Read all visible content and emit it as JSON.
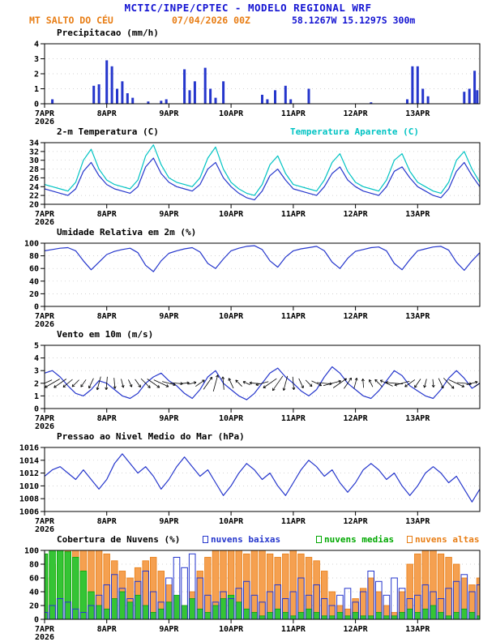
{
  "header": {
    "title": "MCTIC/INPE/CPTEC - MODELO REGIONAL WRF",
    "station": "MT SALTO DO CÉU",
    "run_datetime": "07/04/2026 00Z",
    "location": "58.1267W 15.1297S 300m"
  },
  "colors": {
    "title_blue": "#1414d2",
    "orange": "#e87d14",
    "cyan": "#00c3c3",
    "green": "#00a800",
    "line_blue": "#2536cc",
    "black": "#000000"
  },
  "time": {
    "hours_total": 168,
    "step": 3,
    "ticks": [
      0,
      24,
      48,
      72,
      96,
      120,
      144
    ],
    "tick_labels": [
      "7APR",
      "8APR",
      "9APR",
      "10APR",
      "11APR",
      "12APR",
      "13APR"
    ],
    "year_label": "2026"
  },
  "chart_data": [
    {
      "id": "precipitation",
      "type": "bar",
      "title": "Precipitacao (mm/h)",
      "ylim": [
        0,
        4
      ],
      "yticks": [
        0,
        1,
        2,
        3,
        4
      ],
      "bar_color": "#2536cc",
      "points": [
        [
          3,
          0.3
        ],
        [
          19,
          1.2
        ],
        [
          21,
          1.3
        ],
        [
          24,
          2.9
        ],
        [
          26,
          2.5
        ],
        [
          28,
          1.0
        ],
        [
          30,
          1.5
        ],
        [
          32,
          0.7
        ],
        [
          34,
          0.4
        ],
        [
          40,
          0.15
        ],
        [
          45,
          0.2
        ],
        [
          47,
          0.3
        ],
        [
          54,
          2.3
        ],
        [
          56,
          0.9
        ],
        [
          58,
          1.5
        ],
        [
          62,
          2.4
        ],
        [
          64,
          1.0
        ],
        [
          66,
          0.4
        ],
        [
          69,
          1.5
        ],
        [
          84,
          0.6
        ],
        [
          86,
          0.3
        ],
        [
          89,
          0.9
        ],
        [
          93,
          1.2
        ],
        [
          95,
          0.3
        ],
        [
          102,
          1.0
        ],
        [
          126,
          0.1
        ],
        [
          140,
          0.3
        ],
        [
          142,
          2.5
        ],
        [
          144,
          2.5
        ],
        [
          146,
          1.0
        ],
        [
          148,
          0.5
        ],
        [
          162,
          0.8
        ],
        [
          164,
          1.0
        ],
        [
          166,
          2.2
        ],
        [
          167,
          0.9
        ]
      ]
    },
    {
      "id": "temperature",
      "type": "line",
      "title": "2-m Temperatura (C)",
      "title2": "Temperatura Aparente (C)",
      "ylim": [
        20,
        34
      ],
      "yticks": [
        20,
        22,
        24,
        26,
        28,
        30,
        32,
        34
      ],
      "series": [
        {
          "name": "2-m Temperatura (C)",
          "color": "#2536cc",
          "values": [
            23.5,
            23,
            22.5,
            22,
            23.5,
            27.5,
            29.5,
            26.5,
            24.5,
            23.5,
            23,
            22.5,
            24,
            28.5,
            30.5,
            27,
            25,
            24,
            23.5,
            23,
            24.5,
            28,
            29.5,
            26,
            24,
            22.5,
            21.5,
            21,
            23,
            26.5,
            28,
            25.5,
            23.5,
            23,
            22.5,
            22,
            24,
            27,
            28.5,
            25.5,
            24,
            23,
            22.5,
            22,
            24,
            27.5,
            28.5,
            26,
            24,
            23,
            22,
            21.5,
            23.5,
            27.5,
            29.5,
            26.5,
            24
          ]
        },
        {
          "name": "Temperatura Aparente (C)",
          "color": "#00c3c3",
          "values": [
            24.5,
            24,
            23.5,
            23,
            25,
            30,
            32.5,
            28,
            25.5,
            24.5,
            24,
            23.5,
            25.5,
            31,
            33.5,
            29,
            26,
            25,
            24.5,
            24,
            26,
            30.5,
            33,
            28,
            25,
            23.5,
            22.5,
            22,
            24.5,
            29,
            31,
            27,
            24.5,
            24,
            23.5,
            23,
            25.5,
            29.5,
            31.5,
            27.5,
            25,
            24,
            23.5,
            23,
            25.5,
            30,
            31.5,
            27.5,
            25,
            24,
            23,
            22.5,
            25,
            30,
            32,
            28,
            25
          ]
        }
      ]
    },
    {
      "id": "humidity",
      "type": "line",
      "title": "Umidade Relativa em 2m (%)",
      "ylim": [
        0,
        100
      ],
      "yticks": [
        0,
        20,
        40,
        60,
        80,
        100
      ],
      "series": [
        {
          "name": "Umidade Relativa em 2m (%)",
          "color": "#2536cc",
          "values": [
            88,
            90,
            92,
            93,
            88,
            72,
            58,
            70,
            82,
            87,
            90,
            92,
            85,
            65,
            55,
            72,
            84,
            88,
            91,
            93,
            86,
            68,
            60,
            75,
            88,
            92,
            95,
            96,
            90,
            72,
            62,
            78,
            88,
            91,
            93,
            95,
            88,
            70,
            60,
            76,
            87,
            90,
            93,
            94,
            88,
            68,
            58,
            74,
            88,
            91,
            94,
            95,
            89,
            70,
            57,
            72,
            85
          ]
        }
      ]
    },
    {
      "id": "wind",
      "type": "wind",
      "title": "Vento em 10m (m/s)",
      "ylim": [
        0,
        5
      ],
      "yticks": [
        0,
        1,
        2,
        3,
        4,
        5
      ],
      "arrow_color": "#000000",
      "dirs": [
        205,
        210,
        215,
        220,
        225,
        235,
        245,
        255,
        265,
        275,
        285,
        295,
        305,
        315,
        325,
        335,
        345,
        355,
        5,
        15,
        35,
        55,
        75,
        95,
        115,
        135,
        155,
        175,
        195,
        215,
        235,
        255,
        275,
        295,
        315,
        335,
        355,
        15,
        35,
        55,
        75,
        95,
        115,
        135,
        155,
        175,
        195,
        215,
        235,
        255,
        275,
        295,
        315,
        335,
        355,
        15,
        35
      ],
      "series": [
        {
          "name": "Vento em 10m (m/s)",
          "color": "#2536cc",
          "values": [
            2.8,
            3,
            2.5,
            1.8,
            1.2,
            1,
            1.5,
            2.2,
            2,
            1.5,
            1,
            0.8,
            1.2,
            2,
            2.5,
            2.8,
            2.2,
            1.8,
            1.2,
            0.8,
            1.5,
            2.5,
            3,
            2,
            1.5,
            1,
            0.7,
            1.2,
            2,
            2.8,
            3.2,
            2.5,
            2,
            1.4,
            1,
            1.5,
            2.5,
            3.3,
            2.8,
            2,
            1.5,
            1,
            0.8,
            1.4,
            2.2,
            3,
            2.6,
            1.8,
            1.4,
            1,
            0.8,
            1.5,
            2.4,
            3,
            2.4,
            1.6,
            2
          ]
        }
      ]
    },
    {
      "id": "pressure",
      "type": "line",
      "title": "Pressao ao Nivel Medio do Mar (hPa)",
      "ylim": [
        1006,
        1016
      ],
      "yticks": [
        1006,
        1008,
        1010,
        1012,
        1014,
        1016
      ],
      "series": [
        {
          "name": "Pressao ao Nivel Medio do Mar (hPa)",
          "color": "#2536cc",
          "values": [
            1011.5,
            1012.5,
            1013,
            1012,
            1011,
            1012.5,
            1011,
            1009.5,
            1011,
            1013.5,
            1015,
            1013.5,
            1012,
            1013,
            1011.5,
            1009.5,
            1011,
            1013,
            1014.5,
            1013,
            1011.5,
            1012.5,
            1010.5,
            1008.5,
            1010,
            1012,
            1013.5,
            1012.5,
            1011,
            1012,
            1010,
            1008.5,
            1010.5,
            1012.5,
            1014,
            1013,
            1011.5,
            1012.5,
            1010.5,
            1009,
            1010.5,
            1012.5,
            1013.5,
            1012.5,
            1011,
            1012,
            1010,
            1008.5,
            1010,
            1012,
            1013,
            1012,
            1010.5,
            1011.5,
            1009.5,
            1007.5,
            1009.5
          ]
        }
      ]
    },
    {
      "id": "clouds",
      "type": "clouds",
      "title": "Cobertura de Nuvens (%)",
      "ylim": [
        0,
        100
      ],
      "yticks": [
        0,
        20,
        40,
        60,
        80,
        100
      ],
      "series": [
        {
          "label": "nuvens baixas",
          "color": "#2536cc",
          "style": "bars-outline",
          "values": [
            10,
            20,
            30,
            25,
            15,
            10,
            20,
            35,
            50,
            65,
            45,
            30,
            55,
            70,
            40,
            25,
            60,
            90,
            75,
            95,
            60,
            35,
            25,
            40,
            30,
            45,
            55,
            35,
            25,
            40,
            50,
            30,
            40,
            60,
            35,
            50,
            30,
            20,
            35,
            45,
            25,
            40,
            70,
            55,
            35,
            60,
            45,
            30,
            35,
            50,
            40,
            30,
            45,
            55,
            65,
            40,
            50
          ]
        },
        {
          "label": "nuvens medias",
          "color": "#00a800",
          "fill": "#35c435",
          "style": "bars-filled",
          "values": [
            95,
            100,
            100,
            98,
            90,
            70,
            40,
            20,
            15,
            30,
            40,
            25,
            35,
            20,
            10,
            15,
            25,
            35,
            20,
            30,
            15,
            10,
            20,
            30,
            35,
            25,
            15,
            10,
            5,
            10,
            15,
            10,
            5,
            10,
            15,
            10,
            5,
            5,
            10,
            5,
            10,
            5,
            5,
            10,
            5,
            5,
            10,
            15,
            10,
            15,
            20,
            10,
            5,
            10,
            15,
            10,
            5
          ]
        },
        {
          "label": "nuvens altas",
          "color": "#e87d14",
          "fill": "#f5a050",
          "style": "bars-filled",
          "values": [
            60,
            80,
            95,
            100,
            100,
            100,
            100,
            100,
            95,
            85,
            70,
            60,
            75,
            85,
            90,
            70,
            50,
            30,
            20,
            40,
            70,
            90,
            100,
            100,
            100,
            100,
            95,
            100,
            100,
            95,
            90,
            95,
            100,
            95,
            90,
            85,
            70,
            40,
            20,
            15,
            30,
            45,
            60,
            40,
            20,
            10,
            40,
            80,
            95,
            100,
            100,
            95,
            90,
            80,
            60,
            50,
            60
          ]
        }
      ]
    }
  ]
}
